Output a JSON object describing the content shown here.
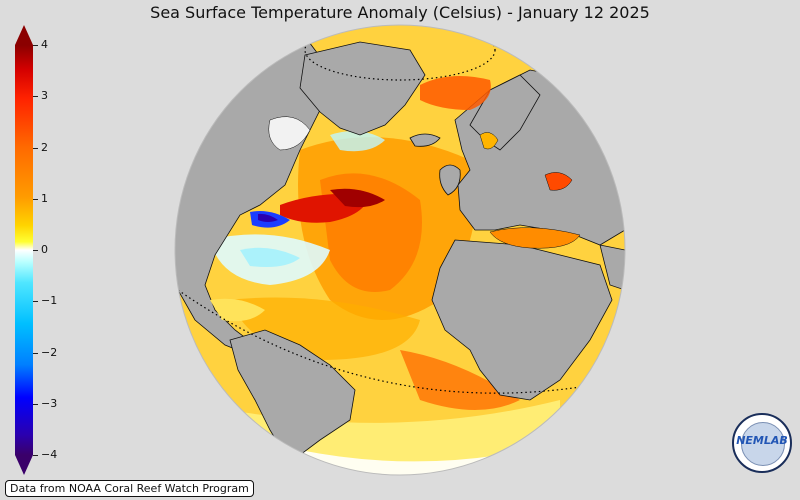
{
  "title": "Sea Surface Temperature Anomaly (Celsius) - January 12 2025",
  "colorbar": {
    "ticks": [
      "4",
      "3",
      "2",
      "1",
      "0",
      "−1",
      "−2",
      "−3",
      "−4"
    ],
    "min": -4,
    "max": 4,
    "extend": "both"
  },
  "source_note": "Data from NOAA Coral Reef Watch Program",
  "logo": {
    "text": "NEMLAB"
  },
  "colors": {
    "land": "#a9a9a9",
    "background": "#dcdcdc",
    "warm_max": "#8b0000",
    "neutral": "#ffffff",
    "cold_max": "#3a006a"
  }
}
